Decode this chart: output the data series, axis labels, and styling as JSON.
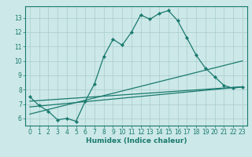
{
  "xlabel": "Humidex (Indice chaleur)",
  "background_color": "#cce8e8",
  "line_color": "#1a7a6e",
  "xlim": [
    -0.5,
    23.5
  ],
  "ylim": [
    5.5,
    13.8
  ],
  "yticks": [
    6,
    7,
    8,
    9,
    10,
    11,
    12,
    13
  ],
  "xticks": [
    0,
    1,
    2,
    3,
    4,
    5,
    6,
    7,
    8,
    9,
    10,
    11,
    12,
    13,
    14,
    15,
    16,
    17,
    18,
    19,
    20,
    21,
    22,
    23
  ],
  "series": [
    {
      "x": [
        0,
        1,
        2,
        3,
        4,
        5,
        6,
        7,
        8,
        9,
        10,
        11,
        12,
        13,
        14,
        15,
        16,
        17,
        18,
        19,
        20,
        21,
        22,
        23
      ],
      "y": [
        7.5,
        6.9,
        6.5,
        5.9,
        6.0,
        5.8,
        7.2,
        8.4,
        10.3,
        11.5,
        11.1,
        12.0,
        13.2,
        12.9,
        13.3,
        13.5,
        12.8,
        11.6,
        10.4,
        9.5,
        8.9,
        8.3,
        8.1,
        8.2
      ],
      "has_markers": true
    },
    {
      "x": [
        0,
        23
      ],
      "y": [
        7.2,
        8.2
      ],
      "has_markers": false
    },
    {
      "x": [
        0,
        23
      ],
      "y": [
        6.8,
        8.2
      ],
      "has_markers": false
    },
    {
      "x": [
        0,
        23
      ],
      "y": [
        6.3,
        10.0
      ],
      "has_markers": false
    }
  ],
  "grid_color": "#aacccc",
  "tick_fontsize": 5.5,
  "xlabel_fontsize": 6.5
}
